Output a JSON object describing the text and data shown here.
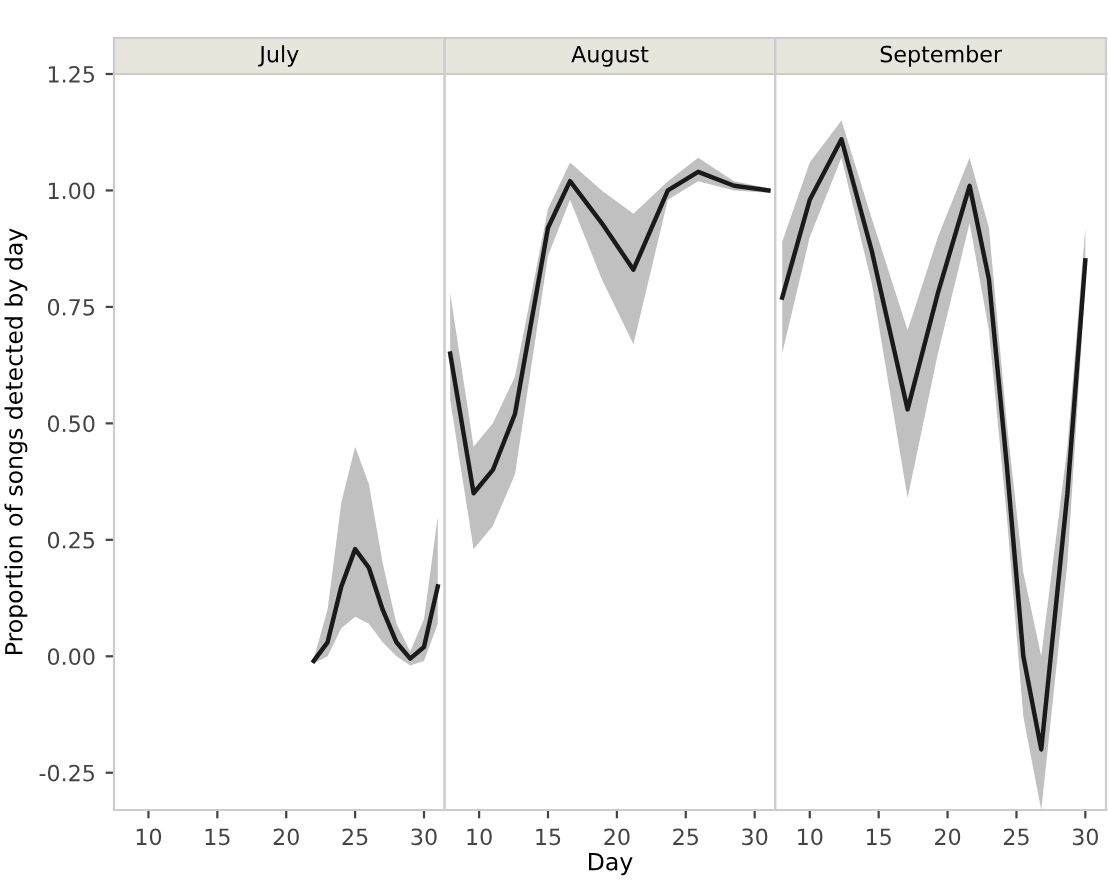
{
  "chart_data": [
    {
      "type": "line",
      "title": "July",
      "ylabel": "Proportion of songs detected by day",
      "xlim": [
        7.5,
        31.5
      ],
      "xticks": [
        10,
        15,
        20,
        25,
        30
      ],
      "ylim": [
        -0.33,
        1.25
      ],
      "yticks": [
        {
          "value": -0.25,
          "label": "-0.25"
        },
        {
          "value": 0,
          "label": "0.00"
        },
        {
          "value": 0.25,
          "label": "0.25"
        },
        {
          "value": 0.5,
          "label": "0.50"
        },
        {
          "value": 0.75,
          "label": "0.75"
        },
        {
          "value": 1,
          "label": "1.00"
        },
        {
          "value": 1.25,
          "label": "1.25"
        }
      ],
      "grid": false,
      "series": [
        {
          "color": "#1a1a1a",
          "x": [
            22,
            23,
            24,
            25,
            26,
            27,
            28,
            29,
            30,
            31
          ],
          "values": [
            -0.01,
            0.03,
            0.15,
            0.23,
            0.19,
            0.1,
            0.03,
            -0.005,
            0.02,
            0.15
          ],
          "lower": [
            -0.015,
            0.0,
            0.06,
            0.085,
            0.07,
            0.03,
            0.0,
            -0.02,
            -0.01,
            0.07
          ],
          "upper": [
            -0.005,
            0.1,
            0.33,
            0.45,
            0.37,
            0.2,
            0.07,
            0.01,
            0.08,
            0.3
          ]
        }
      ]
    },
    {
      "type": "line",
      "title": "August",
      "xlabel": "Day",
      "xlim": [
        7.5,
        31.5
      ],
      "xticks": [
        10,
        15,
        20,
        25,
        30
      ],
      "tick_labels": "x",
      "ylim": [
        -0.33,
        1.25
      ],
      "grid": false,
      "series": [
        {
          "color": "#1a1a1a",
          "x": [
            7.9,
            9.6,
            11,
            12.6,
            15,
            16.6,
            18.9,
            21.2,
            23.7,
            25.9,
            28.5,
            31
          ],
          "values": [
            0.65,
            0.35,
            0.4,
            0.52,
            0.92,
            1.02,
            0.93,
            0.83,
            1.0,
            1.04,
            1.01,
            1.0
          ],
          "lower": [
            0.55,
            0.23,
            0.28,
            0.39,
            0.86,
            0.98,
            0.81,
            0.67,
            0.98,
            1.02,
            1.0,
            0.995
          ],
          "upper": [
            0.78,
            0.45,
            0.5,
            0.6,
            0.96,
            1.06,
            1.0,
            0.95,
            1.02,
            1.07,
            1.02,
            1.005
          ]
        }
      ]
    },
    {
      "type": "line",
      "title": "September",
      "xlim": [
        7.5,
        31.5
      ],
      "xticks": [
        10,
        15,
        20,
        25,
        30
      ],
      "tick_labels": "x",
      "ylim": [
        -0.33,
        1.25
      ],
      "grid": false,
      "series": [
        {
          "color": "#1a1a1a",
          "x": [
            8.0,
            10,
            12.3,
            14.5,
            17.1,
            19.3,
            21.6,
            23,
            24.3,
            25.5,
            26.8,
            28.7,
            30
          ],
          "values": [
            0.77,
            0.98,
            1.11,
            0.87,
            0.53,
            0.78,
            1.01,
            0.81,
            0.41,
            0.0,
            -0.2,
            0.35,
            0.85
          ],
          "lower": [
            0.65,
            0.9,
            1.07,
            0.8,
            0.34,
            0.65,
            0.93,
            0.7,
            0.3,
            -0.13,
            -0.33,
            0.2,
            0.8
          ],
          "upper": [
            0.89,
            1.06,
            1.15,
            0.94,
            0.7,
            0.9,
            1.07,
            0.92,
            0.5,
            0.18,
            0.0,
            0.45,
            0.92
          ]
        }
      ]
    }
  ]
}
